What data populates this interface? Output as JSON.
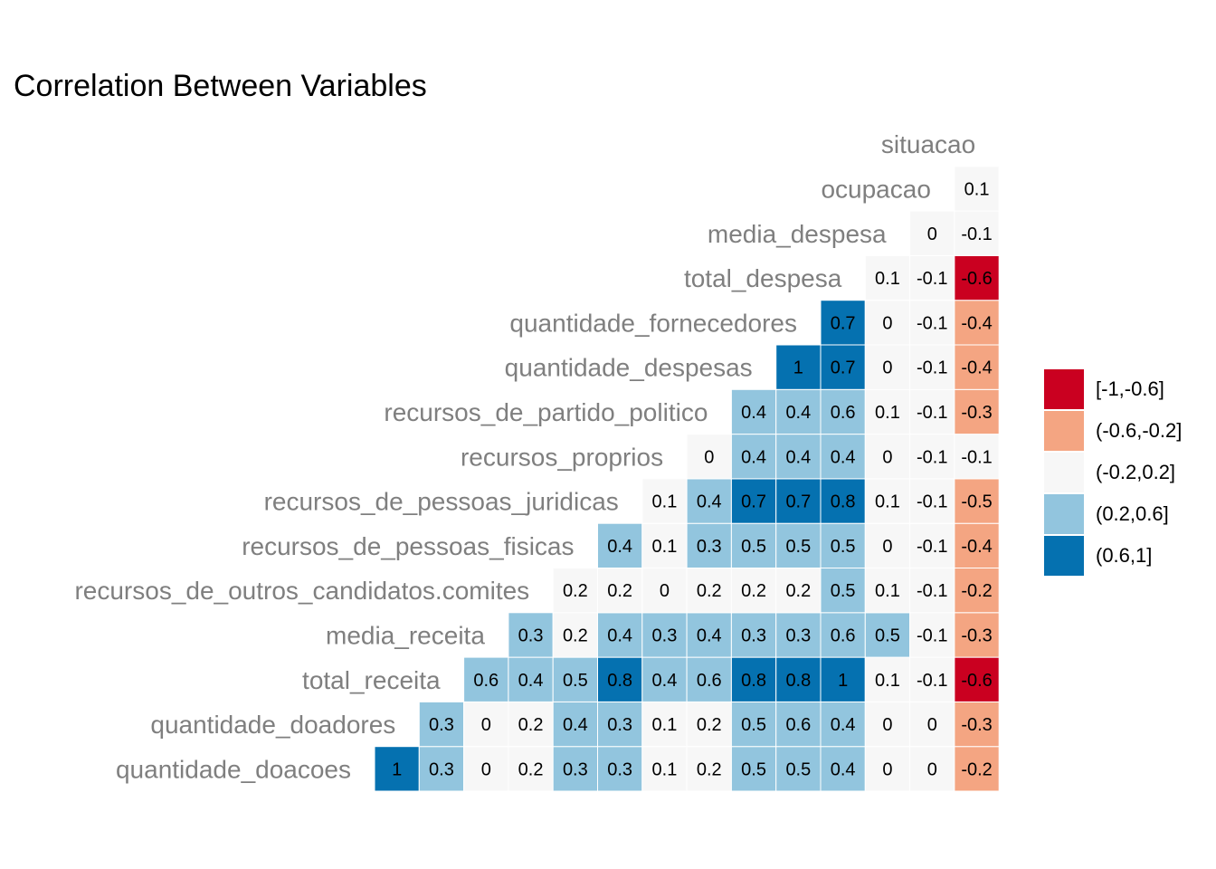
{
  "title": "Correlation Between Variables",
  "chart_data": {
    "type": "heatmap",
    "variables": [
      "quantidade_doacoes",
      "quantidade_doadores",
      "total_receita",
      "media_receita",
      "recursos_de_outros_candidatos.comites",
      "recursos_de_pessoas_fisicas",
      "recursos_de_pessoas_juridicas",
      "recursos_proprios",
      "recursos_de_partido_politico",
      "quantidade_despesas",
      "quantidade_fornecedores",
      "total_despesa",
      "media_despesa",
      "ocupacao",
      "situacao"
    ],
    "rows": [
      {
        "name": "quantidade_doacoes",
        "labels": [
          "1",
          "0.3",
          "0",
          "0.2",
          "0.3",
          "0.3",
          "0.1",
          "0.2",
          "0.5",
          "0.5",
          "0.4",
          "0",
          "0",
          "-0.2"
        ],
        "values": [
          1,
          0.3,
          0,
          0.2,
          0.3,
          0.3,
          0.1,
          0.2,
          0.5,
          0.5,
          0.4,
          0,
          0,
          -0.2
        ]
      },
      {
        "name": "quantidade_doadores",
        "labels": [
          "0.3",
          "0",
          "0.2",
          "0.4",
          "0.3",
          "0.1",
          "0.2",
          "0.5",
          "0.6",
          "0.4",
          "0",
          "0",
          "-0.3"
        ],
        "values": [
          0.3,
          0,
          0.2,
          0.4,
          0.3,
          0.1,
          0.2,
          0.5,
          0.6,
          0.4,
          0,
          0,
          -0.3
        ]
      },
      {
        "name": "total_receita",
        "labels": [
          "0.6",
          "0.4",
          "0.5",
          "0.8",
          "0.4",
          "0.6",
          "0.8",
          "0.8",
          "1",
          "0.1",
          "-0.1",
          "-0.6"
        ],
        "values": [
          0.6,
          0.4,
          0.5,
          0.8,
          0.4,
          0.6,
          0.8,
          0.8,
          1,
          0.1,
          -0.1,
          -0.6
        ]
      },
      {
        "name": "media_receita",
        "labels": [
          "0.3",
          "0.2",
          "0.4",
          "0.3",
          "0.4",
          "0.3",
          "0.3",
          "0.6",
          "0.5",
          "-0.1",
          "-0.3"
        ],
        "values": [
          0.3,
          0.2,
          0.4,
          0.3,
          0.4,
          0.3,
          0.3,
          0.6,
          0.5,
          -0.1,
          -0.3
        ]
      },
      {
        "name": "recursos_de_outros_candidatos.comites",
        "labels": [
          "0.2",
          "0.2",
          "0",
          "0.2",
          "0.2",
          "0.2",
          "0.5",
          "0.1",
          "-0.1",
          "-0.2"
        ],
        "values": [
          0.2,
          0.2,
          0,
          0.2,
          0.2,
          0.2,
          0.5,
          0.1,
          -0.1,
          -0.2
        ]
      },
      {
        "name": "recursos_de_pessoas_fisicas",
        "labels": [
          "0.4",
          "0.1",
          "0.3",
          "0.5",
          "0.5",
          "0.5",
          "0",
          "-0.1",
          "-0.4"
        ],
        "values": [
          0.4,
          0.1,
          0.3,
          0.5,
          0.5,
          0.5,
          0,
          -0.1,
          -0.4
        ]
      },
      {
        "name": "recursos_de_pessoas_juridicas",
        "labels": [
          "0.1",
          "0.4",
          "0.7",
          "0.7",
          "0.8",
          "0.1",
          "-0.1",
          "-0.5"
        ],
        "values": [
          0.1,
          0.4,
          0.7,
          0.7,
          0.8,
          0.1,
          -0.1,
          -0.5
        ]
      },
      {
        "name": "recursos_proprios",
        "labels": [
          "0",
          "0.4",
          "0.4",
          "0.4",
          "0",
          "-0.1",
          "-0.1"
        ],
        "values": [
          0,
          0.4,
          0.4,
          0.4,
          0,
          -0.1,
          -0.1
        ]
      },
      {
        "name": "recursos_de_partido_politico",
        "labels": [
          "0.4",
          "0.4",
          "0.6",
          "0.1",
          "-0.1",
          "-0.3"
        ],
        "values": [
          0.4,
          0.4,
          0.6,
          0.1,
          -0.1,
          -0.3
        ]
      },
      {
        "name": "quantidade_despesas",
        "labels": [
          "1",
          "0.7",
          "0",
          "-0.1",
          "-0.4"
        ],
        "values": [
          1,
          0.7,
          0,
          -0.1,
          -0.4
        ]
      },
      {
        "name": "quantidade_fornecedores",
        "labels": [
          "0.7",
          "0",
          "-0.1",
          "-0.4"
        ],
        "values": [
          0.7,
          0,
          -0.1,
          -0.4
        ]
      },
      {
        "name": "total_despesa",
        "labels": [
          "0.1",
          "-0.1",
          "-0.6"
        ],
        "values": [
          0.1,
          -0.1,
          -0.6
        ]
      },
      {
        "name": "media_despesa",
        "labels": [
          "0",
          "-0.1"
        ],
        "values": [
          0,
          -0.1
        ]
      },
      {
        "name": "ocupacao",
        "labels": [
          "0.1"
        ],
        "values": [
          0.1
        ]
      },
      {
        "name": "situacao",
        "labels": [],
        "values": []
      }
    ],
    "bins": [
      {
        "label": "[-1,-0.6]",
        "min": -1,
        "max": -0.6,
        "color": "#ca0020"
      },
      {
        "label": "(-0.6,-0.2]",
        "min": -0.6,
        "max": -0.2,
        "color": "#f4a582"
      },
      {
        "label": "(-0.2,0.2]",
        "min": -0.2,
        "max": 0.2,
        "color": "#f7f7f7"
      },
      {
        "label": "(0.2,0.6]",
        "min": 0.2,
        "max": 0.6,
        "color": "#92c5de"
      },
      {
        "label": "(0.6,1]",
        "min": 0.6,
        "max": 1,
        "color": "#0571b0"
      }
    ],
    "legend_position": "right",
    "grid": false
  },
  "colors": {
    "axis_label": "#7f7f7f",
    "cell_text": "#000000",
    "cell_border": "#ffffff"
  }
}
